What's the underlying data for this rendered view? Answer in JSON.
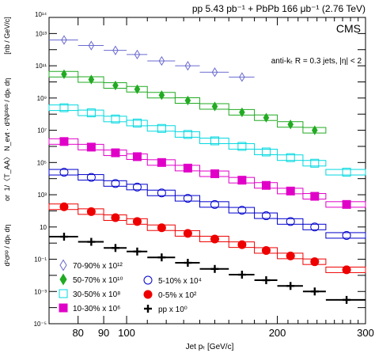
{
  "chart_data": {
    "type": "scatter",
    "title": "pp 5.43 pb⁻¹ + PbPb 166 μb⁻¹ (2.76 TeV)",
    "experiment_label": "CMS",
    "annotation": "anti-kₜ R = 0.3 jets, |η| < 2",
    "xlabel": "Jet pₜ [GeV/c]",
    "ylabel_pp": "d²σᵖᵖ / dpₜ dη",
    "ylabel_or": "or",
    "ylabel_pbpb": "1/〈T_AA〉 N_evt · d²Nᵖᵇᵖᵇ / dpₜ dη",
    "ylabel_units": "[nb / GeV/c]",
    "x_scale": "log",
    "y_scale": "log",
    "xlim": [
      70,
      300
    ],
    "ylim": [
      1e-05,
      100000000000000.0
    ],
    "x_ticks": [
      80,
      90,
      100,
      200,
      300
    ],
    "x_tick_labels": [
      "80",
      "90",
      "100",
      "200",
      "300"
    ],
    "y_ticks": [
      1e-05,
      0.001,
      0.1,
      10,
      1000,
      100000,
      10000000,
      1000000000,
      100000000000,
      10000000000000
    ],
    "y_tick_labels": [
      "10⁻⁵",
      "10⁻³",
      "10⁻¹",
      "10",
      "10³",
      "10⁵",
      "10⁷",
      "10⁹",
      "10¹¹",
      "10¹³"
    ],
    "y_extra_labels": [
      "10¹⁴"
    ],
    "legend_left": [
      {
        "label": "70-90% x 10¹²",
        "marker": "diamond-open",
        "color": "#6a6ad0"
      },
      {
        "label": "50-70% x 10¹⁰",
        "marker": "diamond",
        "color": "#22aa22"
      },
      {
        "label": "30-50% x 10⁸",
        "marker": "square-open",
        "color": "#00d8e0"
      },
      {
        "label": "10-30% x 10⁶",
        "marker": "square",
        "color": "#e000c8"
      }
    ],
    "legend_right": [
      {
        "label": "5-10% x 10⁴",
        "marker": "circle-open",
        "color": "#0000cc"
      },
      {
        "label": "0-5% x 10²",
        "marker": "circle",
        "color": "#ee0000"
      },
      {
        "label": "pp x 10⁰",
        "marker": "cross",
        "color": "#000000"
      }
    ],
    "bin_edges": [
      70,
      80,
      90,
      100,
      110,
      125,
      140,
      160,
      180,
      200,
      225,
      250,
      300
    ],
    "series": [
      {
        "name": "70-90% x 10¹²",
        "marker": "diamond-open",
        "color": "#6a6ad0",
        "x": [
          75,
          85,
          95,
          105,
          117.5,
          132.5,
          150,
          170
        ],
        "y": [
          4000000000000.0,
          1800000000000.0,
          900000000000.0,
          500000000000.0,
          200000000000.0,
          100000000000.0,
          40000000000.0,
          20000000000.0
        ]
      },
      {
        "name": "50-70% x 10¹⁰",
        "marker": "diamond",
        "color": "#22aa22",
        "x": [
          75,
          85,
          95,
          105,
          117.5,
          132.5,
          150,
          170,
          190,
          212.5,
          237.5
        ],
        "y": [
          30000000000.0,
          14000000000.0,
          6000000000.0,
          3500000000.0,
          1500000000.0,
          700000000.0,
          300000000.0,
          130000000.0,
          60000000.0,
          23000000.0,
          10000000.0
        ]
      },
      {
        "name": "30-50% x 10⁸",
        "marker": "square-open",
        "color": "#00d8e0",
        "x": [
          75,
          85,
          95,
          105,
          117.5,
          132.5,
          150,
          170,
          190,
          212.5,
          237.5,
          275
        ],
        "y": [
          250000000.0,
          120000000.0,
          50000000.0,
          28000000.0,
          13000000.0,
          5500000.0,
          2200000.0,
          1000000.0,
          450000.0,
          200000.0,
          90000.0,
          25000.0
        ]
      },
      {
        "name": "10-30% x 10⁶",
        "marker": "square",
        "color": "#e000c8",
        "x": [
          75,
          85,
          95,
          105,
          117.5,
          132.5,
          150,
          170,
          190,
          212.5,
          237.5,
          275
        ],
        "y": [
          2000000.0,
          900000.0,
          400000.0,
          230000.0,
          100000.0,
          45000.0,
          20000.0,
          8000.0,
          3800.0,
          1700.0,
          800,
          250
        ]
      },
      {
        "name": "5-10% x 10⁴",
        "marker": "circle-open",
        "color": "#0000cc",
        "x": [
          75,
          85,
          95,
          105,
          117.5,
          132.5,
          150,
          170,
          190,
          212.5,
          237.5,
          275
        ],
        "y": [
          25000.0,
          12000.0,
          5000.0,
          3000.0,
          1300.0,
          600,
          250,
          110,
          50,
          22,
          10,
          3
        ]
      },
      {
        "name": "0-5% x 10²",
        "marker": "circle",
        "color": "#ee0000",
        "x": [
          75,
          85,
          95,
          105,
          117.5,
          132.5,
          150,
          170,
          190,
          212.5,
          237.5,
          275
        ],
        "y": [
          180,
          90,
          38,
          22,
          9,
          4,
          1.8,
          0.8,
          0.35,
          0.16,
          0.07,
          0.022
        ]
      },
      {
        "name": "pp x 10⁰",
        "marker": "cross",
        "color": "#000000",
        "x": [
          75,
          85,
          95,
          105,
          117.5,
          132.5,
          150,
          170,
          190,
          212.5,
          237.5,
          275
        ],
        "y": [
          2.5,
          1.2,
          0.5,
          0.3,
          0.13,
          0.06,
          0.025,
          0.011,
          0.005,
          0.0022,
          0.001,
          0.0003
        ]
      }
    ]
  }
}
